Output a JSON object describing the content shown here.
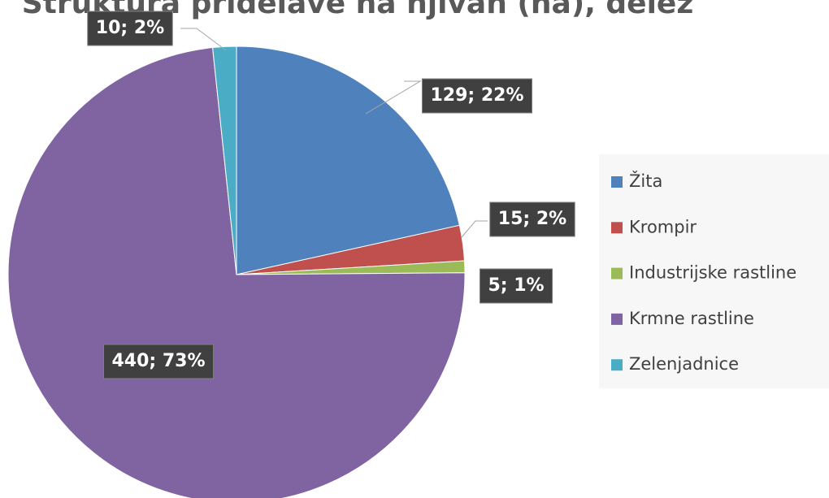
{
  "chart_data": {
    "type": "pie",
    "title": "Struktura pridelave na njivah (ha), delež",
    "categories": [
      "Žita",
      "Krompir",
      "Industrijske rastline",
      "Krmne rastline",
      "Zelenjadnice"
    ],
    "values": [
      129,
      15,
      5,
      440,
      10
    ],
    "value_labels": [
      "129; 22%",
      "15; 2%",
      "5; 1%",
      "440; 73%",
      "10; 2%"
    ],
    "colors": [
      "#4f81bd",
      "#c0504d",
      "#9bbb59",
      "#8064a2",
      "#4bacc6"
    ],
    "legend": "right"
  }
}
